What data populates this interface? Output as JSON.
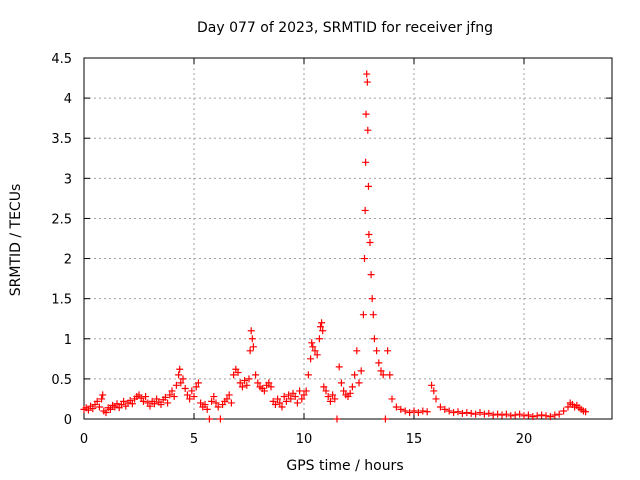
{
  "chart_data": {
    "type": "scatter",
    "title": "Day 077 of 2023, SRMTID for receiver jfng",
    "xlabel": "GPS time / hours",
    "ylabel": "SRMTID / TECUs",
    "xlim": [
      0,
      24
    ],
    "ylim": [
      0,
      4.5
    ],
    "xticks": [
      0,
      5,
      10,
      15,
      20
    ],
    "xtick_labels": [
      "0",
      "5",
      "10",
      "15",
      "20"
    ],
    "yticks": [
      0,
      0.5,
      1,
      1.5,
      2,
      2.5,
      3,
      3.5,
      4,
      4.5
    ],
    "ytick_labels": [
      "0",
      "0.5",
      "1",
      "1.5",
      "2",
      "2.5",
      "3",
      "3.5",
      "4",
      "4.5"
    ],
    "grid": true,
    "marker": "plus",
    "series": [
      {
        "name": "SRMTID",
        "color": "#ff0000",
        "points": [
          [
            0.0,
            0.12
          ],
          [
            0.1,
            0.14
          ],
          [
            0.2,
            0.11
          ],
          [
            0.3,
            0.16
          ],
          [
            0.4,
            0.13
          ],
          [
            0.5,
            0.18
          ],
          [
            0.6,
            0.22
          ],
          [
            0.7,
            0.15
          ],
          [
            0.8,
            0.25
          ],
          [
            0.85,
            0.3
          ],
          [
            0.9,
            0.1
          ],
          [
            1.0,
            0.08
          ],
          [
            1.1,
            0.14
          ],
          [
            1.2,
            0.12
          ],
          [
            1.3,
            0.17
          ],
          [
            1.4,
            0.15
          ],
          [
            1.5,
            0.19
          ],
          [
            1.6,
            0.14
          ],
          [
            1.7,
            0.18
          ],
          [
            1.8,
            0.22
          ],
          [
            1.9,
            0.16
          ],
          [
            2.0,
            0.2
          ],
          [
            2.1,
            0.23
          ],
          [
            2.2,
            0.19
          ],
          [
            2.3,
            0.25
          ],
          [
            2.4,
            0.28
          ],
          [
            2.5,
            0.3
          ],
          [
            2.6,
            0.26
          ],
          [
            2.7,
            0.22
          ],
          [
            2.8,
            0.28
          ],
          [
            2.9,
            0.2
          ],
          [
            3.0,
            0.16
          ],
          [
            3.1,
            0.22
          ],
          [
            3.2,
            0.19
          ],
          [
            3.3,
            0.25
          ],
          [
            3.4,
            0.21
          ],
          [
            3.5,
            0.18
          ],
          [
            3.6,
            0.24
          ],
          [
            3.7,
            0.27
          ],
          [
            3.8,
            0.2
          ],
          [
            3.9,
            0.3
          ],
          [
            4.0,
            0.35
          ],
          [
            4.1,
            0.28
          ],
          [
            4.2,
            0.42
          ],
          [
            4.3,
            0.55
          ],
          [
            4.35,
            0.62
          ],
          [
            4.4,
            0.45
          ],
          [
            4.5,
            0.5
          ],
          [
            4.6,
            0.38
          ],
          [
            4.7,
            0.3
          ],
          [
            4.8,
            0.25
          ],
          [
            4.9,
            0.35
          ],
          [
            5.0,
            0.28
          ],
          [
            5.1,
            0.4
          ],
          [
            5.2,
            0.45
          ],
          [
            5.3,
            0.2
          ],
          [
            5.4,
            0.15
          ],
          [
            5.5,
            0.18
          ],
          [
            5.6,
            0.12
          ],
          [
            5.7,
            0.0
          ],
          [
            5.8,
            0.22
          ],
          [
            5.9,
            0.28
          ],
          [
            6.0,
            0.2
          ],
          [
            6.1,
            0.15
          ],
          [
            6.2,
            0.0
          ],
          [
            6.3,
            0.18
          ],
          [
            6.4,
            0.22
          ],
          [
            6.5,
            0.25
          ],
          [
            6.6,
            0.3
          ],
          [
            6.7,
            0.2
          ],
          [
            6.8,
            0.55
          ],
          [
            6.9,
            0.62
          ],
          [
            7.0,
            0.58
          ],
          [
            7.1,
            0.45
          ],
          [
            7.2,
            0.4
          ],
          [
            7.3,
            0.48
          ],
          [
            7.4,
            0.42
          ],
          [
            7.5,
            0.5
          ],
          [
            7.55,
            0.85
          ],
          [
            7.6,
            1.1
          ],
          [
            7.65,
            1.0
          ],
          [
            7.7,
            0.9
          ],
          [
            7.8,
            0.55
          ],
          [
            7.9,
            0.45
          ],
          [
            8.0,
            0.4
          ],
          [
            8.1,
            0.38
          ],
          [
            8.2,
            0.35
          ],
          [
            8.3,
            0.42
          ],
          [
            8.4,
            0.45
          ],
          [
            8.5,
            0.4
          ],
          [
            8.6,
            0.22
          ],
          [
            8.7,
            0.18
          ],
          [
            8.8,
            0.25
          ],
          [
            8.9,
            0.2
          ],
          [
            9.0,
            0.15
          ],
          [
            9.1,
            0.28
          ],
          [
            9.2,
            0.22
          ],
          [
            9.3,
            0.3
          ],
          [
            9.4,
            0.25
          ],
          [
            9.5,
            0.32
          ],
          [
            9.6,
            0.28
          ],
          [
            9.7,
            0.2
          ],
          [
            9.8,
            0.35
          ],
          [
            9.9,
            0.25
          ],
          [
            10.0,
            0.3
          ],
          [
            10.1,
            0.35
          ],
          [
            10.2,
            0.55
          ],
          [
            10.3,
            0.75
          ],
          [
            10.35,
            0.95
          ],
          [
            10.4,
            0.9
          ],
          [
            10.5,
            0.85
          ],
          [
            10.6,
            0.8
          ],
          [
            10.7,
            1.0
          ],
          [
            10.75,
            1.15
          ],
          [
            10.8,
            1.2
          ],
          [
            10.85,
            1.1
          ],
          [
            10.9,
            0.4
          ],
          [
            11.0,
            0.35
          ],
          [
            11.1,
            0.28
          ],
          [
            11.2,
            0.22
          ],
          [
            11.3,
            0.3
          ],
          [
            11.4,
            0.25
          ],
          [
            11.5,
            0.0
          ],
          [
            11.6,
            0.65
          ],
          [
            11.7,
            0.45
          ],
          [
            11.8,
            0.35
          ],
          [
            11.9,
            0.3
          ],
          [
            12.0,
            0.28
          ],
          [
            12.1,
            0.32
          ],
          [
            12.2,
            0.4
          ],
          [
            12.3,
            0.55
          ],
          [
            12.4,
            0.85
          ],
          [
            12.5,
            0.45
          ],
          [
            12.6,
            0.6
          ],
          [
            12.7,
            1.3
          ],
          [
            12.75,
            2.0
          ],
          [
            12.78,
            2.6
          ],
          [
            12.8,
            3.2
          ],
          [
            12.82,
            3.8
          ],
          [
            12.85,
            4.3
          ],
          [
            12.88,
            4.2
          ],
          [
            12.9,
            3.6
          ],
          [
            12.93,
            2.9
          ],
          [
            12.95,
            2.3
          ],
          [
            13.0,
            2.2
          ],
          [
            13.05,
            1.8
          ],
          [
            13.1,
            1.5
          ],
          [
            13.15,
            1.3
          ],
          [
            13.2,
            1.0
          ],
          [
            13.3,
            0.85
          ],
          [
            13.4,
            0.7
          ],
          [
            13.5,
            0.6
          ],
          [
            13.6,
            0.55
          ],
          [
            13.7,
            0.0
          ],
          [
            13.8,
            0.85
          ],
          [
            13.9,
            0.55
          ],
          [
            14.0,
            0.25
          ],
          [
            14.2,
            0.15
          ],
          [
            14.4,
            0.12
          ],
          [
            14.6,
            0.1
          ],
          [
            14.8,
            0.08
          ],
          [
            15.0,
            0.1
          ],
          [
            15.2,
            0.08
          ],
          [
            15.4,
            0.1
          ],
          [
            15.6,
            0.09
          ],
          [
            15.8,
            0.42
          ],
          [
            15.9,
            0.35
          ],
          [
            16.0,
            0.25
          ],
          [
            16.2,
            0.15
          ],
          [
            16.4,
            0.12
          ],
          [
            16.6,
            0.1
          ],
          [
            16.8,
            0.08
          ],
          [
            17.0,
            0.09
          ],
          [
            17.2,
            0.07
          ],
          [
            17.4,
            0.08
          ],
          [
            17.6,
            0.07
          ],
          [
            17.8,
            0.06
          ],
          [
            18.0,
            0.08
          ],
          [
            18.2,
            0.06
          ],
          [
            18.4,
            0.07
          ],
          [
            18.6,
            0.05
          ],
          [
            18.8,
            0.06
          ],
          [
            19.0,
            0.05
          ],
          [
            19.2,
            0.06
          ],
          [
            19.4,
            0.04
          ],
          [
            19.6,
            0.05
          ],
          [
            19.8,
            0.06
          ],
          [
            20.0,
            0.04
          ],
          [
            20.2,
            0.05
          ],
          [
            20.4,
            0.03
          ],
          [
            20.6,
            0.04
          ],
          [
            20.8,
            0.05
          ],
          [
            21.0,
            0.04
          ],
          [
            21.2,
            0.03
          ],
          [
            21.4,
            0.05
          ],
          [
            21.6,
            0.06
          ],
          [
            21.8,
            0.1
          ],
          [
            22.0,
            0.15
          ],
          [
            22.1,
            0.2
          ],
          [
            22.2,
            0.18
          ],
          [
            22.3,
            0.15
          ],
          [
            22.4,
            0.17
          ],
          [
            22.5,
            0.14
          ],
          [
            22.6,
            0.12
          ],
          [
            22.7,
            0.1
          ],
          [
            22.8,
            0.09
          ]
        ]
      }
    ]
  }
}
